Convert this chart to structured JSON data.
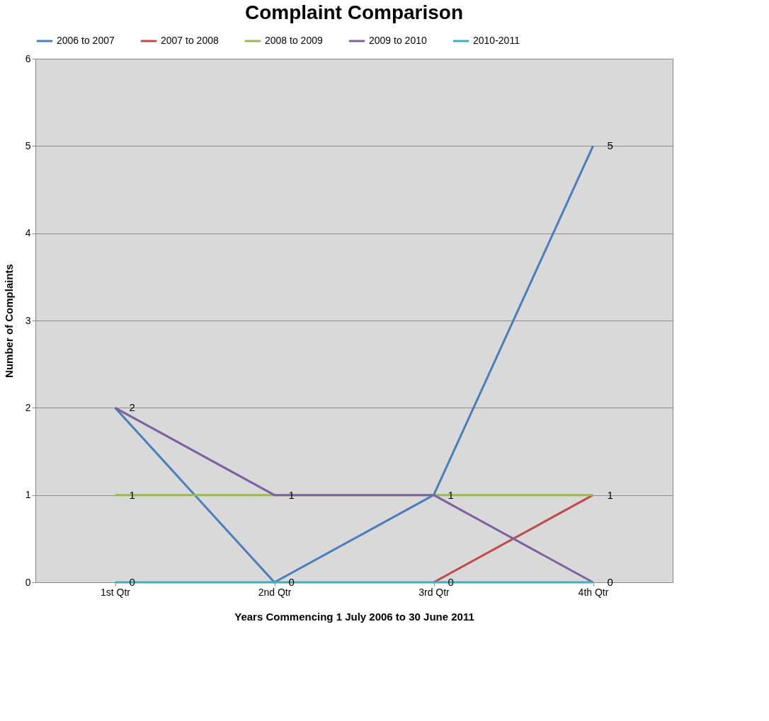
{
  "chart_data": {
    "type": "line",
    "title": "Complaint Comparison",
    "xlabel": "Years Commencing 1 July 2006 to 30 June 2011",
    "ylabel": "Number of Complaints",
    "categories": [
      "1st Qtr",
      "2nd Qtr",
      "3rd Qtr",
      "4th Qtr"
    ],
    "series": [
      {
        "name": "2006 to 2007",
        "color": "#4a7ebb",
        "values": [
          2,
          0,
          1,
          5
        ],
        "value_labels": [
          null,
          null,
          null,
          "5"
        ]
      },
      {
        "name": "2007 to 2008",
        "color": "#be4b48",
        "values": [
          null,
          null,
          0,
          1
        ],
        "value_labels": [
          null,
          null,
          null,
          null
        ]
      },
      {
        "name": "2008 to 2009",
        "color": "#98b954",
        "values": [
          1,
          1,
          1,
          1
        ],
        "value_labels": [
          "1",
          null,
          null,
          "1"
        ]
      },
      {
        "name": "2009 to 2010",
        "color": "#7d60a0",
        "values": [
          2,
          1,
          1,
          0
        ],
        "value_labels": [
          "2",
          "1",
          "1",
          null
        ]
      },
      {
        "name": "2010-2011",
        "color": "#46aac5",
        "values": [
          0,
          0,
          0,
          0
        ],
        "value_labels": [
          "0",
          "0",
          "0",
          "0"
        ]
      }
    ],
    "ylim": [
      0,
      6
    ],
    "yticks": [
      0,
      1,
      2,
      3,
      4,
      5,
      6
    ],
    "grid": "y",
    "legend": "top",
    "marker": "none",
    "line_style": "solid"
  }
}
